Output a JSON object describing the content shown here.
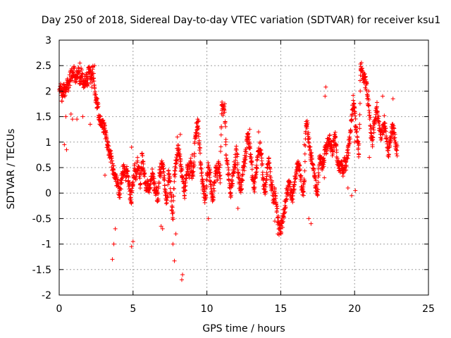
{
  "chart_data": {
    "type": "scatter",
    "title": "Day 250 of 2018, Sidereal Day-to-day VTEC variation (SDTVAR) for receiver ksu1",
    "xlabel": "GPS time / hours",
    "ylabel": "SDTVAR / TECUs",
    "xlim": [
      0,
      25
    ],
    "ylim": [
      -2,
      3
    ],
    "xticks": [
      0,
      5,
      10,
      15,
      20,
      25
    ],
    "yticks": [
      -2,
      -1.5,
      -1,
      -0.5,
      0,
      0.5,
      1,
      1.5,
      2,
      2.5,
      3
    ],
    "xtick_labels": [
      "0",
      "5",
      "10",
      "15",
      "20",
      "25"
    ],
    "ytick_labels": [
      "-2",
      "-1.5",
      "-1",
      "-0.5",
      "0",
      "0.5",
      "1",
      "1.5",
      "2",
      "2.5",
      "3"
    ],
    "grid": true,
    "marker": "+",
    "marker_color": "#ff0000",
    "series": [
      {
        "name": "SDTVAR",
        "trace": [
          [
            0.0,
            1.95
          ],
          [
            0.1,
            2.05
          ],
          [
            0.2,
            1.9
          ],
          [
            0.3,
            2.1
          ],
          [
            0.4,
            2.0
          ],
          [
            0.5,
            2.15
          ],
          [
            0.6,
            2.1
          ],
          [
            0.7,
            2.2
          ],
          [
            0.8,
            2.35
          ],
          [
            0.9,
            2.3
          ],
          [
            1.0,
            2.4
          ],
          [
            1.1,
            2.25
          ],
          [
            1.2,
            2.3
          ],
          [
            1.3,
            2.4
          ],
          [
            1.4,
            2.2
          ],
          [
            1.5,
            2.35
          ],
          [
            1.6,
            2.2
          ],
          [
            1.7,
            2.1
          ],
          [
            1.8,
            2.3
          ],
          [
            1.9,
            2.2
          ],
          [
            2.0,
            2.4
          ],
          [
            2.1,
            2.3
          ],
          [
            2.2,
            2.2
          ],
          [
            2.3,
            2.4
          ],
          [
            2.4,
            2.0
          ],
          [
            2.5,
            1.85
          ],
          [
            2.6,
            1.7
          ],
          [
            2.7,
            1.5
          ],
          [
            2.8,
            1.4
          ],
          [
            2.9,
            1.35
          ],
          [
            3.0,
            1.3
          ],
          [
            3.1,
            1.25
          ],
          [
            3.2,
            1.0
          ],
          [
            3.3,
            0.9
          ],
          [
            3.4,
            0.8
          ],
          [
            3.5,
            0.7
          ],
          [
            3.6,
            0.5
          ],
          [
            3.7,
            0.4
          ],
          [
            3.8,
            0.3
          ],
          [
            3.9,
            0.2
          ],
          [
            4.0,
            0.1
          ],
          [
            4.1,
            0.0
          ],
          [
            4.2,
            0.2
          ],
          [
            4.3,
            0.4
          ],
          [
            4.4,
            0.5
          ],
          [
            4.5,
            0.3
          ],
          [
            4.6,
            0.5
          ],
          [
            4.7,
            0.2
          ],
          [
            4.8,
            0.0
          ],
          [
            4.9,
            -0.1
          ],
          [
            5.0,
            0.2
          ],
          [
            5.1,
            0.5
          ],
          [
            5.2,
            0.3
          ],
          [
            5.3,
            0.6
          ],
          [
            5.4,
            0.4
          ],
          [
            5.5,
            0.2
          ],
          [
            5.6,
            0.7
          ],
          [
            5.7,
            0.5
          ],
          [
            5.8,
            0.3
          ],
          [
            5.9,
            0.1
          ],
          [
            6.0,
            0.2
          ],
          [
            6.1,
            0.0
          ],
          [
            6.2,
            0.3
          ],
          [
            6.3,
            0.4
          ],
          [
            6.4,
            0.2
          ],
          [
            6.5,
            0.1
          ],
          [
            6.6,
            0.0
          ],
          [
            6.7,
            -0.1
          ],
          [
            6.8,
            0.4
          ],
          [
            6.9,
            0.5
          ],
          [
            7.0,
            0.6
          ],
          [
            7.1,
            0.3
          ],
          [
            7.2,
            0.0
          ],
          [
            7.3,
            -0.2
          ],
          [
            7.4,
            0.4
          ],
          [
            7.5,
            0.2
          ],
          [
            7.6,
            -0.2
          ],
          [
            7.7,
            -0.5
          ],
          [
            7.8,
            0.3
          ],
          [
            7.9,
            0.6
          ],
          [
            8.0,
            0.8
          ],
          [
            8.1,
            0.9
          ],
          [
            8.2,
            0.6
          ],
          [
            8.3,
            0.4
          ],
          [
            8.4,
            0.2
          ],
          [
            8.5,
            0.0
          ],
          [
            8.6,
            0.3
          ],
          [
            8.7,
            0.5
          ],
          [
            8.8,
            0.4
          ],
          [
            8.9,
            0.6
          ],
          [
            9.0,
            0.3
          ],
          [
            9.1,
            0.5
          ],
          [
            9.2,
            1.0
          ],
          [
            9.3,
            1.3
          ],
          [
            9.4,
            1.4
          ],
          [
            9.5,
            0.9
          ],
          [
            9.6,
            0.5
          ],
          [
            9.7,
            0.2
          ],
          [
            9.8,
            0.0
          ],
          [
            9.9,
            -0.1
          ],
          [
            10.0,
            0.3
          ],
          [
            10.1,
            0.5
          ],
          [
            10.2,
            0.4
          ],
          [
            10.3,
            0.1
          ],
          [
            10.4,
            -0.2
          ],
          [
            10.5,
            0.2
          ],
          [
            10.6,
            0.5
          ],
          [
            10.7,
            0.3
          ],
          [
            10.8,
            0.6
          ],
          [
            10.9,
            0.2
          ],
          [
            11.0,
            1.7
          ],
          [
            11.1,
            1.6
          ],
          [
            11.2,
            1.7
          ],
          [
            11.3,
            0.8
          ],
          [
            11.4,
            0.5
          ],
          [
            11.5,
            0.3
          ],
          [
            11.6,
            0.0
          ],
          [
            11.7,
            0.2
          ],
          [
            11.8,
            0.4
          ],
          [
            11.9,
            0.6
          ],
          [
            12.0,
            0.8
          ],
          [
            12.1,
            0.5
          ],
          [
            12.2,
            0.2
          ],
          [
            12.3,
            0.0
          ],
          [
            12.4,
            0.3
          ],
          [
            12.5,
            0.5
          ],
          [
            12.6,
            0.7
          ],
          [
            12.7,
            1.0
          ],
          [
            12.8,
            1.1
          ],
          [
            12.9,
            0.9
          ],
          [
            13.0,
            0.6
          ],
          [
            13.1,
            0.3
          ],
          [
            13.2,
            0.1
          ],
          [
            13.3,
            0.3
          ],
          [
            13.4,
            0.6
          ],
          [
            13.5,
            0.8
          ],
          [
            13.6,
            0.9
          ],
          [
            13.7,
            0.7
          ],
          [
            13.8,
            0.3
          ],
          [
            13.9,
            0.0
          ],
          [
            14.0,
            0.2
          ],
          [
            14.1,
            0.5
          ],
          [
            14.2,
            0.6
          ],
          [
            14.3,
            0.3
          ],
          [
            14.4,
            0.1
          ],
          [
            14.5,
            -0.1
          ],
          [
            14.6,
            0.0
          ],
          [
            14.7,
            -0.2
          ],
          [
            14.8,
            -0.5
          ],
          [
            14.9,
            -0.7
          ],
          [
            15.0,
            -0.7
          ],
          [
            15.1,
            -0.6
          ],
          [
            15.2,
            -0.4
          ],
          [
            15.3,
            -0.2
          ],
          [
            15.4,
            0.0
          ],
          [
            15.5,
            0.1
          ],
          [
            15.6,
            0.2
          ],
          [
            15.7,
            0.0
          ],
          [
            15.8,
            -0.1
          ],
          [
            15.9,
            0.1
          ],
          [
            16.0,
            0.3
          ],
          [
            16.1,
            0.5
          ],
          [
            16.2,
            0.6
          ],
          [
            16.3,
            0.4
          ],
          [
            16.4,
            0.2
          ],
          [
            16.5,
            0.0
          ],
          [
            16.6,
            0.2
          ],
          [
            16.7,
            1.4
          ],
          [
            16.8,
            1.3
          ],
          [
            16.9,
            1.0
          ],
          [
            17.0,
            0.8
          ],
          [
            17.1,
            0.6
          ],
          [
            17.2,
            0.5
          ],
          [
            17.3,
            0.3
          ],
          [
            17.4,
            0.1
          ],
          [
            17.5,
            0.0
          ],
          [
            17.6,
            0.6
          ],
          [
            17.7,
            0.7
          ],
          [
            17.8,
            0.5
          ],
          [
            17.9,
            0.6
          ],
          [
            18.0,
            0.8
          ],
          [
            18.1,
            0.9
          ],
          [
            18.2,
            1.0
          ],
          [
            18.3,
            1.1
          ],
          [
            18.4,
            0.9
          ],
          [
            18.5,
            0.8
          ],
          [
            18.6,
            1.0
          ],
          [
            18.7,
            1.1
          ],
          [
            18.8,
            0.7
          ],
          [
            18.9,
            0.6
          ],
          [
            19.0,
            0.5
          ],
          [
            19.1,
            0.6
          ],
          [
            19.2,
            0.4
          ],
          [
            19.3,
            0.6
          ],
          [
            19.4,
            0.5
          ],
          [
            19.5,
            0.7
          ],
          [
            19.6,
            0.9
          ],
          [
            19.7,
            1.1
          ],
          [
            19.8,
            1.5
          ],
          [
            19.9,
            1.8
          ],
          [
            20.0,
            1.6
          ],
          [
            20.1,
            1.3
          ],
          [
            20.2,
            1.0
          ],
          [
            20.3,
            0.8
          ],
          [
            20.4,
            2.5
          ],
          [
            20.5,
            2.4
          ],
          [
            20.6,
            2.3
          ],
          [
            20.7,
            2.2
          ],
          [
            20.8,
            2.1
          ],
          [
            20.9,
            1.8
          ],
          [
            21.0,
            1.6
          ],
          [
            21.1,
            1.2
          ],
          [
            21.2,
            1.0
          ],
          [
            21.3,
            1.3
          ],
          [
            21.4,
            1.5
          ],
          [
            21.5,
            1.7
          ],
          [
            21.6,
            1.5
          ],
          [
            21.7,
            1.3
          ],
          [
            21.8,
            1.1
          ],
          [
            21.9,
            1.2
          ],
          [
            22.0,
            1.4
          ],
          [
            22.1,
            1.2
          ],
          [
            22.2,
            0.9
          ],
          [
            22.3,
            0.8
          ],
          [
            22.4,
            1.0
          ],
          [
            22.5,
            1.2
          ],
          [
            22.6,
            1.3
          ],
          [
            22.7,
            1.1
          ],
          [
            22.8,
            0.9
          ],
          [
            22.9,
            0.8
          ]
        ],
        "outliers": [
          [
            0.35,
            0.95
          ],
          [
            0.5,
            0.85
          ],
          [
            0.45,
            1.5
          ],
          [
            0.8,
            1.55
          ],
          [
            0.9,
            1.45
          ],
          [
            1.4,
            2.55
          ],
          [
            1.2,
            1.45
          ],
          [
            1.6,
            1.5
          ],
          [
            2.4,
            2.5
          ],
          [
            2.1,
            1.35
          ],
          [
            3.4,
            0.85
          ],
          [
            3.6,
            -1.3
          ],
          [
            3.7,
            -1.0
          ],
          [
            3.8,
            -0.7
          ],
          [
            4.9,
            -1.05
          ],
          [
            5.0,
            -0.95
          ],
          [
            4.9,
            0.9
          ],
          [
            3.1,
            0.35
          ],
          [
            7.8,
            -1.33
          ],
          [
            7.7,
            -1.0
          ],
          [
            7.9,
            -0.8
          ],
          [
            8.35,
            -1.6
          ],
          [
            8.3,
            -1.7
          ],
          [
            7.0,
            -0.7
          ],
          [
            6.9,
            -0.65
          ],
          [
            8.0,
            1.1
          ],
          [
            8.2,
            1.15
          ],
          [
            9.0,
            0.75
          ],
          [
            10.1,
            -0.5
          ],
          [
            12.1,
            -0.3
          ],
          [
            13.5,
            1.2
          ],
          [
            12.9,
            1.25
          ],
          [
            14.6,
            -0.55
          ],
          [
            14.8,
            -0.8
          ],
          [
            15.0,
            -0.75
          ],
          [
            17.05,
            -0.6
          ],
          [
            16.9,
            -0.5
          ],
          [
            16.6,
            0.95
          ],
          [
            18.05,
            2.08
          ],
          [
            18.0,
            1.9
          ],
          [
            17.95,
            0.3
          ],
          [
            19.55,
            0.1
          ],
          [
            19.8,
            -0.05
          ],
          [
            20.05,
            0.05
          ],
          [
            20.95,
            2.0
          ],
          [
            21.9,
            1.9
          ],
          [
            22.6,
            1.85
          ],
          [
            21.0,
            0.7
          ],
          [
            20.0,
            1.0
          ]
        ]
      }
    ]
  }
}
